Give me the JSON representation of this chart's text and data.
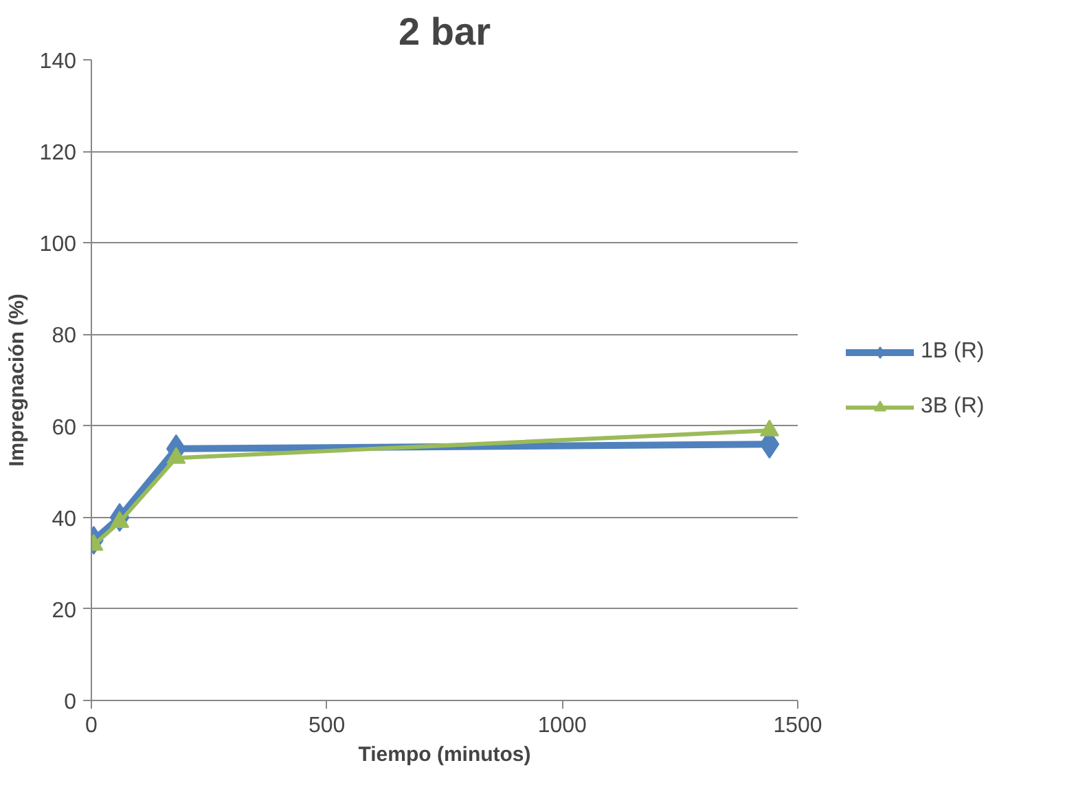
{
  "chart_data": {
    "type": "line",
    "title": "2 bar",
    "xlabel": "Tiempo (minutos)",
    "ylabel": "Impregnación (%)",
    "xlim": [
      0,
      1500
    ],
    "xticks": [
      0,
      500,
      1000,
      1500
    ],
    "ylim": [
      0,
      140
    ],
    "yticks": [
      0,
      20,
      40,
      60,
      80,
      100,
      120,
      140
    ],
    "grid": "y",
    "legend": "right",
    "line_style": "solid",
    "series": [
      {
        "name": "1B (R)",
        "color": "#4f81bd",
        "marker": "diamond",
        "x": [
          5,
          60,
          180,
          1440
        ],
        "values": [
          35,
          40,
          55,
          56
        ]
      },
      {
        "name": "3B (R)",
        "color": "#9bbb59",
        "marker": "triangle",
        "x": [
          5,
          60,
          180,
          1440
        ],
        "values": [
          34,
          39,
          53,
          59
        ]
      }
    ]
  }
}
